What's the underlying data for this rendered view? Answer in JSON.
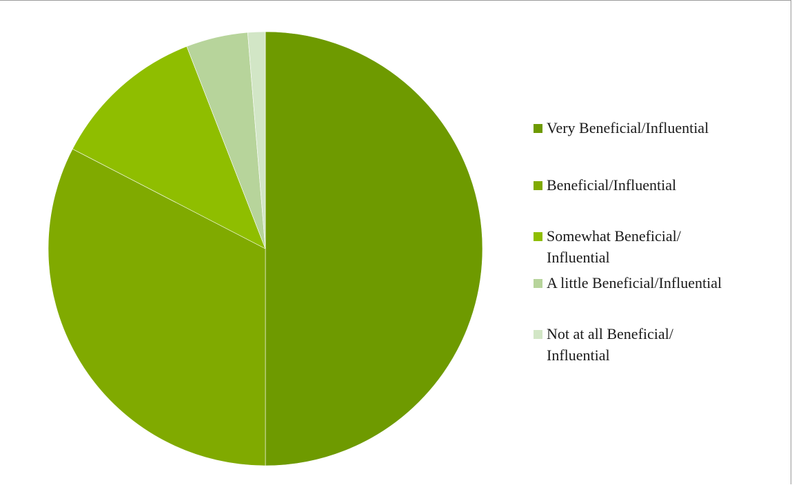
{
  "chart_data": {
    "type": "pie",
    "title": "",
    "start_angle": "12 o'clock",
    "direction": "clockwise",
    "legend_position": "right",
    "slices": [
      {
        "label": "Very Beneficial/Influential",
        "value": 50.0,
        "color": "#6e9a00"
      },
      {
        "label": "Beneficial/Influential",
        "value": 32.6,
        "color": "#80aa00"
      },
      {
        "label": "Somewhat Beneficial/ Influential",
        "value": 11.5,
        "color": "#8fbe00"
      },
      {
        "label": "A little Beneficial/Influential",
        "value": 4.6,
        "color": "#b7d49b"
      },
      {
        "label": "Not at all Beneficial/ Influential",
        "value": 1.3,
        "color": "#d2e6c6"
      }
    ]
  },
  "legend": {
    "items": [
      {
        "line1": "Very Beneficial/Influential",
        "line2": ""
      },
      {
        "line1": "Beneficial/Influential",
        "line2": ""
      },
      {
        "line1": "Somewhat Beneficial/",
        "line2": "Influential"
      },
      {
        "line1": "A little Beneficial/Influential",
        "line2": ""
      },
      {
        "line1": "Not at all Beneficial/",
        "line2": "Influential"
      }
    ]
  }
}
